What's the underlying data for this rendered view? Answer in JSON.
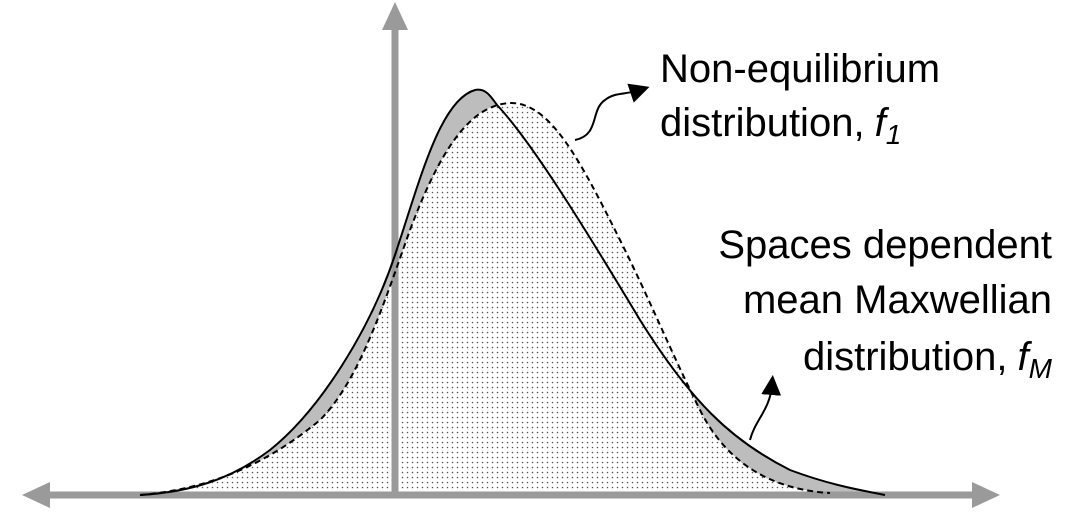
{
  "labels": [
    {
      "lines": [
        "Non-equilibrium",
        "distribution,"
      ],
      "symbol": "f",
      "subscript": "1"
    },
    {
      "lines": [
        "Spaces dependent",
        "mean Maxwellian",
        "distribution,"
      ],
      "symbol": "f",
      "subscript": "M"
    }
  ]
}
